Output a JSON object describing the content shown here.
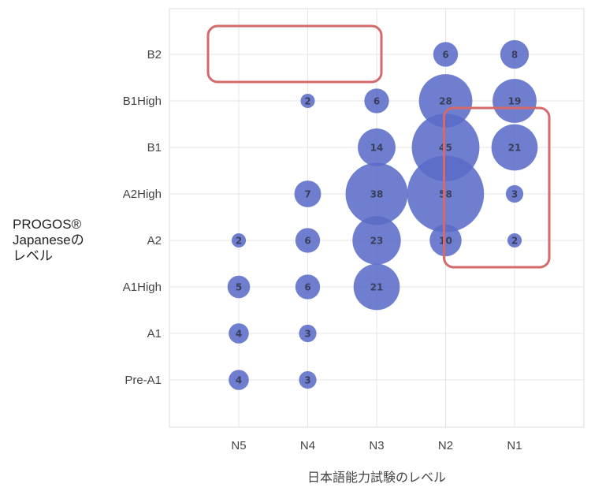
{
  "chart_data": {
    "type": "scatter",
    "xlabel": "日本語能力試験のレベル",
    "ylabel_lines": [
      "PROGOS®",
      "Japaneseの",
      "レベル"
    ],
    "x_categories": [
      "N5",
      "N4",
      "N3",
      "N2",
      "N1"
    ],
    "y_categories": [
      "Pre-A1",
      "A1",
      "A1High",
      "A2",
      "A2High",
      "B1",
      "B1High",
      "B2"
    ],
    "grid": true,
    "bubble_color": "#5b6cc8",
    "highlight_color": "#d46a6a",
    "points": [
      {
        "x": "N5",
        "y": "A2",
        "value": 2
      },
      {
        "x": "N5",
        "y": "A1High",
        "value": 5
      },
      {
        "x": "N5",
        "y": "A1",
        "value": 4
      },
      {
        "x": "N5",
        "y": "Pre-A1",
        "value": 4
      },
      {
        "x": "N4",
        "y": "B1High",
        "value": 2
      },
      {
        "x": "N4",
        "y": "A2High",
        "value": 7
      },
      {
        "x": "N4",
        "y": "A2",
        "value": 6
      },
      {
        "x": "N4",
        "y": "A1High",
        "value": 6
      },
      {
        "x": "N4",
        "y": "A1",
        "value": 3
      },
      {
        "x": "N4",
        "y": "Pre-A1",
        "value": 3
      },
      {
        "x": "N3",
        "y": "B1High",
        "value": 6
      },
      {
        "x": "N3",
        "y": "B1",
        "value": 14
      },
      {
        "x": "N3",
        "y": "A2High",
        "value": 38
      },
      {
        "x": "N3",
        "y": "A2",
        "value": 23
      },
      {
        "x": "N3",
        "y": "A1High",
        "value": 21
      },
      {
        "x": "N2",
        "y": "B2",
        "value": 6
      },
      {
        "x": "N2",
        "y": "B1High",
        "value": 28
      },
      {
        "x": "N2",
        "y": "B1",
        "value": 45
      },
      {
        "x": "N2",
        "y": "A2High",
        "value": 58
      },
      {
        "x": "N2",
        "y": "A2",
        "value": 10
      },
      {
        "x": "N1",
        "y": "B2",
        "value": 8
      },
      {
        "x": "N1",
        "y": "B1High",
        "value": 19
      },
      {
        "x": "N1",
        "y": "B1",
        "value": 21
      },
      {
        "x": "N1",
        "y": "A2High",
        "value": 3
      },
      {
        "x": "N1",
        "y": "A2",
        "value": 2
      }
    ],
    "highlight_regions": [
      {
        "x_from": "N5",
        "x_to": "N3",
        "y_from": "B2",
        "y_to": "B2"
      },
      {
        "x_from": "N2",
        "x_to": "N1",
        "y_from": "A2",
        "y_to": "B1"
      }
    ]
  }
}
